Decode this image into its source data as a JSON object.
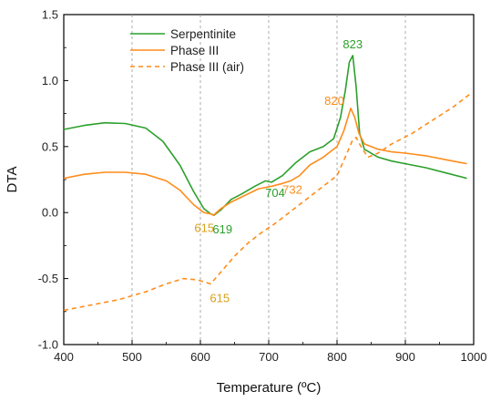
{
  "chart_data": {
    "type": "line",
    "xlabel": "Temperature (ºC)",
    "ylabel": "DTA",
    "xlim": [
      400,
      1000
    ],
    "ylim": [
      -1.0,
      1.5
    ],
    "xticks": [
      400,
      500,
      600,
      700,
      800,
      900,
      1000
    ],
    "yticks": [
      -1.0,
      -0.5,
      0.0,
      0.5,
      1.0,
      1.5
    ],
    "xtick_labels": [
      "400",
      "500",
      "600",
      "700",
      "800",
      "900",
      "1000"
    ],
    "ytick_labels": [
      "-1.0",
      "-0.5",
      "0.0",
      "0.5",
      "1.0",
      "1.5"
    ],
    "grid": "vertical dashed",
    "legend_position": "top-left",
    "series": [
      {
        "name": "Serpentinite",
        "color": "#2ca02c",
        "style": "solid",
        "x": [
          400,
          430,
          460,
          490,
          520,
          545,
          570,
          590,
          605,
          615,
          620,
          630,
          645,
          660,
          680,
          695,
          704,
          720,
          740,
          760,
          780,
          795,
          805,
          812,
          818,
          823,
          828,
          833,
          840,
          860,
          880,
          900,
          930,
          960,
          990
        ],
        "y": [
          0.63,
          0.66,
          0.68,
          0.675,
          0.64,
          0.54,
          0.36,
          0.16,
          0.03,
          -0.01,
          -0.02,
          0.02,
          0.1,
          0.14,
          0.2,
          0.24,
          0.23,
          0.28,
          0.38,
          0.46,
          0.5,
          0.56,
          0.72,
          0.92,
          1.14,
          1.19,
          0.95,
          0.6,
          0.48,
          0.42,
          0.39,
          0.37,
          0.34,
          0.3,
          0.26
        ]
      },
      {
        "name": "Phase III",
        "color": "#ff8c1a",
        "style": "solid",
        "x": [
          400,
          430,
          460,
          490,
          520,
          550,
          570,
          590,
          605,
          615,
          619,
          630,
          645,
          665,
          685,
          705,
          720,
          732,
          745,
          760,
          780,
          800,
          810,
          820,
          826,
          832,
          840,
          860,
          880,
          900,
          930,
          960,
          990
        ],
        "y": [
          0.26,
          0.29,
          0.305,
          0.305,
          0.29,
          0.24,
          0.17,
          0.06,
          0.0,
          -0.01,
          -0.02,
          0.03,
          0.08,
          0.13,
          0.18,
          0.2,
          0.22,
          0.24,
          0.28,
          0.36,
          0.42,
          0.5,
          0.62,
          0.79,
          0.72,
          0.6,
          0.52,
          0.48,
          0.46,
          0.45,
          0.43,
          0.4,
          0.37
        ]
      },
      {
        "name": "Phase III (air)",
        "color": "#ff8c1a",
        "style": "dashed",
        "x": [
          400,
          440,
          480,
          520,
          550,
          575,
          595,
          615,
          630,
          650,
          670,
          690,
          710,
          740,
          770,
          800,
          812,
          822,
          828,
          835,
          845,
          860,
          880,
          910,
          940,
          970,
          995
        ],
        "y": [
          -0.74,
          -0.7,
          -0.66,
          -0.6,
          -0.54,
          -0.5,
          -0.51,
          -0.54,
          -0.45,
          -0.33,
          -0.23,
          -0.15,
          -0.08,
          0.04,
          0.16,
          0.28,
          0.42,
          0.54,
          0.57,
          0.5,
          0.42,
          0.45,
          0.52,
          0.6,
          0.7,
          0.8,
          0.9
        ]
      }
    ],
    "annotations": [
      {
        "text": "823",
        "x": 823,
        "y": 1.19,
        "color": "#2ca02c"
      },
      {
        "text": "820",
        "x": 820,
        "y": 0.79,
        "color": "#ff8c1a"
      },
      {
        "text": "704",
        "x": 704,
        "y": 0.23,
        "color": "#2ca02c"
      },
      {
        "text": "732",
        "x": 732,
        "y": 0.24,
        "color": "#ff8c1a"
      },
      {
        "text": "615",
        "x": 615,
        "y": -0.01,
        "color": "#d9a018"
      },
      {
        "text": "619",
        "x": 619,
        "y": -0.02,
        "color": "#2ca02c"
      },
      {
        "text": "615",
        "x": 615,
        "y": -0.54,
        "color": "#d9a018"
      }
    ]
  }
}
